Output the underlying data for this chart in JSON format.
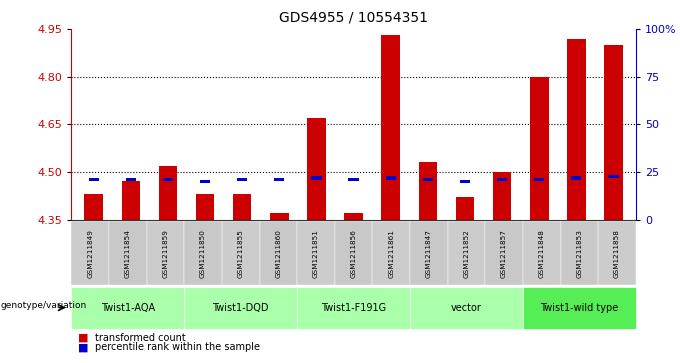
{
  "title": "GDS4955 / 10554351",
  "samples": [
    "GSM1211849",
    "GSM1211854",
    "GSM1211859",
    "GSM1211850",
    "GSM1211855",
    "GSM1211860",
    "GSM1211851",
    "GSM1211856",
    "GSM1211861",
    "GSM1211847",
    "GSM1211852",
    "GSM1211857",
    "GSM1211848",
    "GSM1211853",
    "GSM1211858"
  ],
  "red_values": [
    4.43,
    4.47,
    4.52,
    4.43,
    4.43,
    4.37,
    4.67,
    4.37,
    4.93,
    4.53,
    4.42,
    4.5,
    4.8,
    4.92,
    4.9
  ],
  "blue_percentile": [
    20,
    20,
    20,
    19,
    20,
    20,
    21,
    20,
    21,
    20,
    19,
    20,
    20,
    21,
    22
  ],
  "groups": [
    {
      "label": "Twist1-AQA",
      "indices": [
        0,
        1,
        2
      ],
      "color": "#aaffaa"
    },
    {
      "label": "Twist1-DQD",
      "indices": [
        3,
        4,
        5
      ],
      "color": "#aaffaa"
    },
    {
      "label": "Twist1-F191G",
      "indices": [
        6,
        7,
        8
      ],
      "color": "#aaffaa"
    },
    {
      "label": "vector",
      "indices": [
        9,
        10,
        11
      ],
      "color": "#aaffaa"
    },
    {
      "label": "Twist1-wild type",
      "indices": [
        12,
        13,
        14
      ],
      "color": "#55ee55"
    }
  ],
  "ylim_left": [
    4.35,
    4.95
  ],
  "ylim_right": [
    0,
    100
  ],
  "yticks_left": [
    4.35,
    4.5,
    4.65,
    4.8,
    4.95
  ],
  "yticks_right": [
    0,
    25,
    50,
    75,
    100
  ],
  "ytick_labels_right": [
    "0",
    "25",
    "50",
    "75",
    "100%"
  ],
  "bar_color_red": "#cc0000",
  "bar_color_blue": "#0000cc",
  "axis_color_left": "#cc0000",
  "axis_color_right": "#0000cc",
  "bar_width": 0.5,
  "baseline": 4.35,
  "gridlines": [
    4.5,
    4.65,
    4.8
  ]
}
